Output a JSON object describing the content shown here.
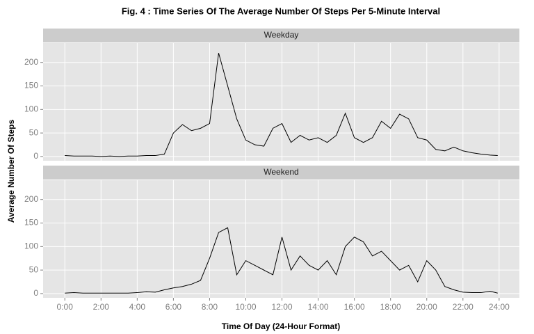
{
  "chart_data": {
    "type": "line",
    "title": "Fig. 4 : Time Series Of The Average Number Of Steps Per 5-Minute Interval",
    "x_label": "Time Of Day (24-Hour Format)",
    "y_label": "Average Number Of Steps",
    "x": [
      0,
      0.5,
      1,
      1.5,
      2,
      2.5,
      3,
      3.5,
      4,
      4.5,
      5,
      5.5,
      6,
      6.5,
      7,
      7.5,
      8,
      8.5,
      9,
      9.5,
      10,
      10.5,
      11,
      11.5,
      12,
      12.5,
      13,
      13.5,
      14,
      14.5,
      15,
      15.5,
      16,
      16.5,
      17,
      17.5,
      18,
      18.5,
      19,
      19.5,
      20,
      20.5,
      21,
      21.5,
      22,
      22.5,
      23,
      23.5,
      23.92
    ],
    "series": [
      {
        "name": "Weekday",
        "color": "#000000",
        "values": [
          2,
          1,
          1,
          1,
          0,
          1,
          0,
          1,
          1,
          2,
          2,
          5,
          50,
          68,
          55,
          60,
          70,
          220,
          150,
          80,
          35,
          25,
          22,
          60,
          70,
          30,
          45,
          35,
          40,
          30,
          45,
          92,
          40,
          30,
          40,
          75,
          60,
          90,
          80,
          40,
          35,
          15,
          12,
          20,
          12,
          8,
          5,
          3,
          2
        ]
      },
      {
        "name": "Weekend",
        "color": "#000000",
        "values": [
          1,
          2,
          1,
          1,
          1,
          1,
          1,
          1,
          2,
          4,
          3,
          8,
          12,
          15,
          20,
          28,
          75,
          130,
          140,
          40,
          70,
          60,
          50,
          40,
          120,
          50,
          80,
          60,
          50,
          70,
          40,
          100,
          120,
          110,
          80,
          90,
          70,
          50,
          60,
          25,
          70,
          50,
          15,
          8,
          3,
          2,
          2,
          5,
          1
        ]
      }
    ],
    "xlim": [
      -1.2,
      25.12
    ],
    "xticks": [
      {
        "value": 0,
        "label": "0:00"
      },
      {
        "value": 2,
        "label": "2:00"
      },
      {
        "value": 4,
        "label": "4:00"
      },
      {
        "value": 6,
        "label": "6:00"
      },
      {
        "value": 8,
        "label": "8:00"
      },
      {
        "value": 10,
        "label": "10:00"
      },
      {
        "value": 12,
        "label": "12:00"
      },
      {
        "value": 14,
        "label": "14:00"
      },
      {
        "value": 16,
        "label": "16:00"
      },
      {
        "value": 18,
        "label": "18:00"
      },
      {
        "value": 20,
        "label": "20:00"
      },
      {
        "value": 22,
        "label": "22:00"
      },
      {
        "value": 24,
        "label": "24:00"
      }
    ],
    "ylim": [
      -9,
      241
    ],
    "yticks": [
      0,
      50,
      100,
      150,
      200
    ],
    "grid": true
  }
}
